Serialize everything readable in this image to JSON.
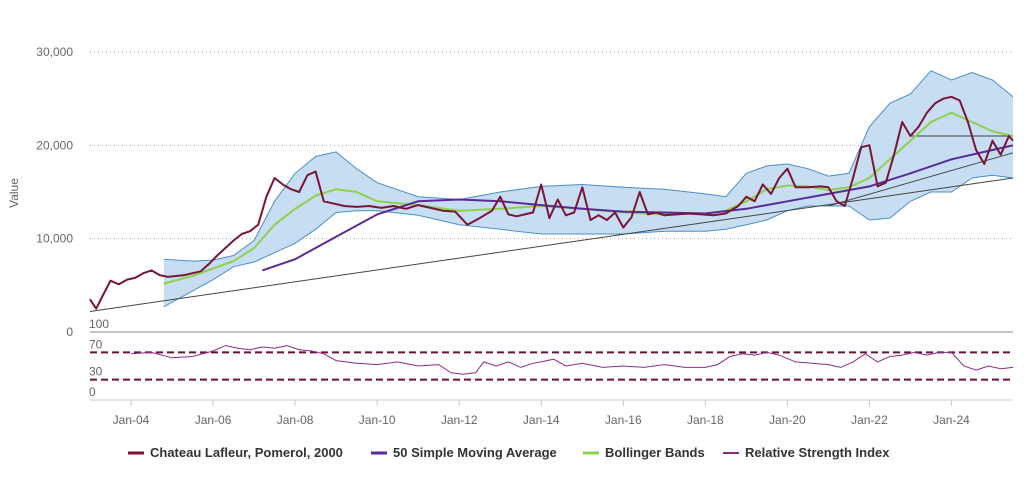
{
  "chart_data": {
    "type": "line",
    "ylabel": "Value",
    "price_axis": {
      "ylim": [
        0,
        30000
      ],
      "ticks": [
        0,
        10000,
        20000,
        30000
      ],
      "tick_labels": [
        "0",
        "10,000",
        "20,000",
        "30,000"
      ]
    },
    "rsi_axis": {
      "ylim": [
        0,
        100
      ],
      "ticks": [
        0,
        30,
        70,
        100
      ],
      "tick_labels": [
        "0",
        "30",
        "70",
        "100"
      ],
      "overbought": 70,
      "oversold": 30
    },
    "xlim": [
      2003.0,
      2025.5
    ],
    "x_ticks": [
      2004.0,
      2006.0,
      2008.0,
      2010.0,
      2012.0,
      2014.0,
      2016.0,
      2018.0,
      2020.0,
      2022.0,
      2024.0
    ],
    "x_tick_labels": [
      "Jan-04",
      "Jan-06",
      "Jan-08",
      "Jan-10",
      "Jan-12",
      "Jan-14",
      "Jan-16",
      "Jan-18",
      "Jan-20",
      "Jan-22",
      "Jan-24"
    ],
    "legend": [
      "Chateau Lafleur, Pomerol, 2000",
      "50 Simple Moving Average",
      "Bollinger Bands",
      "Relative Strength Index"
    ],
    "legend_position": "bottom",
    "colors": {
      "price": "#7b1538",
      "sma": "#5b2a9a",
      "bollinger_mid": "#8fd14f",
      "band_fill": "#bcd7f0",
      "band_edge": "#4a90c8",
      "rsi": "#8a2d8a",
      "rsi_ref": "#6b1030",
      "trend": "#444444",
      "grid": "#999999"
    },
    "series": [
      {
        "name": "Chateau Lafleur, Pomerol, 2000",
        "x": [
          2003.0,
          2003.15,
          2003.3,
          2003.5,
          2003.7,
          2003.9,
          2004.1,
          2004.3,
          2004.5,
          2004.7,
          2004.9,
          2005.1,
          2005.3,
          2005.5,
          2005.7,
          2005.9,
          2006.1,
          2006.3,
          2006.5,
          2006.7,
          2006.9,
          2007.1,
          2007.3,
          2007.5,
          2007.7,
          2007.9,
          2008.1,
          2008.3,
          2008.5,
          2008.7,
          2008.9,
          2009.2,
          2009.5,
          2009.8,
          2010.1,
          2010.4,
          2010.7,
          2011.0,
          2011.3,
          2011.6,
          2011.9,
          2012.2,
          2012.5,
          2012.8,
          2013.0,
          2013.2,
          2013.4,
          2013.6,
          2013.8,
          2014.0,
          2014.2,
          2014.4,
          2014.6,
          2014.8,
          2015.0,
          2015.2,
          2015.4,
          2015.6,
          2015.8,
          2016.0,
          2016.2,
          2016.4,
          2016.6,
          2016.8,
          2017.0,
          2017.3,
          2017.6,
          2017.9,
          2018.2,
          2018.5,
          2018.8,
          2019.0,
          2019.2,
          2019.4,
          2019.6,
          2019.8,
          2020.0,
          2020.2,
          2020.5,
          2020.8,
          2021.0,
          2021.2,
          2021.4,
          2021.6,
          2021.8,
          2022.0,
          2022.2,
          2022.4,
          2022.6,
          2022.8,
          2023.0,
          2023.2,
          2023.4,
          2023.6,
          2023.8,
          2024.0,
          2024.2,
          2024.4,
          2024.6,
          2024.8,
          2025.0,
          2025.2,
          2025.4,
          2025.5
        ],
        "y": [
          3500,
          2500,
          3800,
          5500,
          5100,
          5600,
          5800,
          6300,
          6600,
          6100,
          5900,
          6000,
          6100,
          6300,
          6500,
          7300,
          8200,
          9000,
          9800,
          10500,
          10800,
          11500,
          14500,
          16500,
          15800,
          15300,
          15000,
          16800,
          17200,
          14000,
          13800,
          13500,
          13400,
          13500,
          13300,
          13500,
          13200,
          13600,
          13300,
          13000,
          12900,
          11500,
          12200,
          13000,
          14500,
          12600,
          12400,
          12600,
          12800,
          15800,
          12200,
          14200,
          12500,
          12800,
          15500,
          12000,
          12500,
          12000,
          12800,
          11200,
          12300,
          15000,
          12600,
          12800,
          12500,
          12600,
          12700,
          12600,
          12500,
          12700,
          13500,
          14500,
          14000,
          15800,
          14800,
          16500,
          17500,
          15500,
          15500,
          15600,
          15500,
          14000,
          13500,
          16500,
          19800,
          20000,
          15600,
          16000,
          19000,
          22500,
          21000,
          22000,
          23500,
          24500,
          25000,
          25200,
          24800,
          22500,
          19500,
          18000,
          20500,
          19000,
          21000,
          20500
        ]
      },
      {
        "name": "50 Simple Moving Average",
        "x": [
          2007.2,
          2008.0,
          2009.0,
          2010.0,
          2011.0,
          2012.0,
          2013.0,
          2014.0,
          2015.0,
          2016.0,
          2017.0,
          2018.0,
          2019.0,
          2020.0,
          2021.0,
          2022.0,
          2023.0,
          2024.0,
          2025.0,
          2025.5
        ],
        "y": [
          6600,
          7800,
          10200,
          12600,
          14000,
          14200,
          14000,
          13600,
          13200,
          12900,
          12800,
          12700,
          13200,
          14000,
          14800,
          15600,
          17000,
          18500,
          19500,
          20000
        ]
      },
      {
        "name": "Bollinger Bands",
        "x": [
          2004.8,
          2005.5,
          2006.0,
          2006.5,
          2007.0,
          2007.5,
          2008.0,
          2008.5,
          2009.0,
          2009.5,
          2010.0,
          2011.0,
          2012.0,
          2013.0,
          2014.0,
          2015.0,
          2016.0,
          2017.0,
          2018.0,
          2018.5,
          2019.0,
          2019.5,
          2020.0,
          2020.5,
          2021.0,
          2021.5,
          2022.0,
          2022.5,
          2023.0,
          2023.5,
          2024.0,
          2024.5,
          2025.0,
          2025.5
        ],
        "y": [
          5200,
          6000,
          6800,
          7600,
          9000,
          11500,
          13200,
          14600,
          15300,
          15000,
          14000,
          13600,
          13000,
          13200,
          13500,
          13200,
          12800,
          12600,
          12700,
          13000,
          14000,
          15300,
          15700,
          15600,
          15200,
          15500,
          16500,
          18500,
          20500,
          22500,
          23500,
          22500,
          21500,
          21000
        ],
        "upper": [
          7800,
          7600,
          7700,
          8200,
          9800,
          14000,
          17000,
          18800,
          19300,
          17500,
          16000,
          14500,
          14200,
          15000,
          15600,
          15800,
          15500,
          15300,
          14800,
          14500,
          17000,
          17800,
          18000,
          17500,
          16700,
          17000,
          22000,
          24500,
          25500,
          28000,
          27000,
          27800,
          27000,
          25200
        ],
        "lower": [
          2700,
          4400,
          5600,
          7000,
          7500,
          8500,
          9500,
          11000,
          12800,
          13000,
          13000,
          12500,
          11500,
          11000,
          10500,
          10500,
          10500,
          10800,
          10800,
          11000,
          11500,
          12000,
          13000,
          13500,
          13500,
          13500,
          12000,
          12200,
          14000,
          15000,
          15000,
          16500,
          16800,
          16500
        ]
      },
      {
        "name": "Relative Strength Index",
        "x": [
          2004.0,
          2004.5,
          2005.0,
          2005.5,
          2006.0,
          2006.3,
          2006.6,
          2006.9,
          2007.2,
          2007.5,
          2007.8,
          2008.1,
          2008.4,
          2008.7,
          2009.0,
          2009.5,
          2010.0,
          2010.5,
          2011.0,
          2011.5,
          2011.8,
          2012.1,
          2012.4,
          2012.6,
          2012.9,
          2013.2,
          2013.5,
          2013.8,
          2014.0,
          2014.3,
          2014.6,
          2015.0,
          2015.5,
          2016.0,
          2016.5,
          2017.0,
          2017.5,
          2018.0,
          2018.3,
          2018.6,
          2018.9,
          2019.2,
          2019.5,
          2019.8,
          2020.2,
          2020.6,
          2021.0,
          2021.3,
          2021.6,
          2021.9,
          2022.2,
          2022.5,
          2022.8,
          2023.1,
          2023.4,
          2023.7,
          2024.0,
          2024.3,
          2024.6,
          2024.9,
          2025.2,
          2025.5
        ],
        "y": [
          68,
          70,
          62,
          64,
          72,
          80,
          76,
          74,
          78,
          76,
          80,
          74,
          72,
          68,
          58,
          54,
          52,
          56,
          50,
          52,
          40,
          38,
          40,
          56,
          50,
          56,
          48,
          54,
          56,
          60,
          50,
          54,
          48,
          50,
          48,
          52,
          48,
          48,
          52,
          64,
          68,
          66,
          70,
          66,
          56,
          54,
          52,
          48,
          56,
          68,
          56,
          64,
          66,
          70,
          66,
          70,
          70,
          50,
          44,
          50,
          46,
          48
        ]
      }
    ],
    "trend_lines": [
      {
        "x": [
          2003.0,
          2025.5
        ],
        "y": [
          2200,
          16500
        ]
      },
      {
        "x": [
          2021.0,
          2025.5
        ],
        "y": [
          13500,
          19200
        ]
      },
      {
        "x": [
          2023.0,
          2025.5
        ],
        "y": [
          21000,
          21000
        ]
      }
    ]
  }
}
